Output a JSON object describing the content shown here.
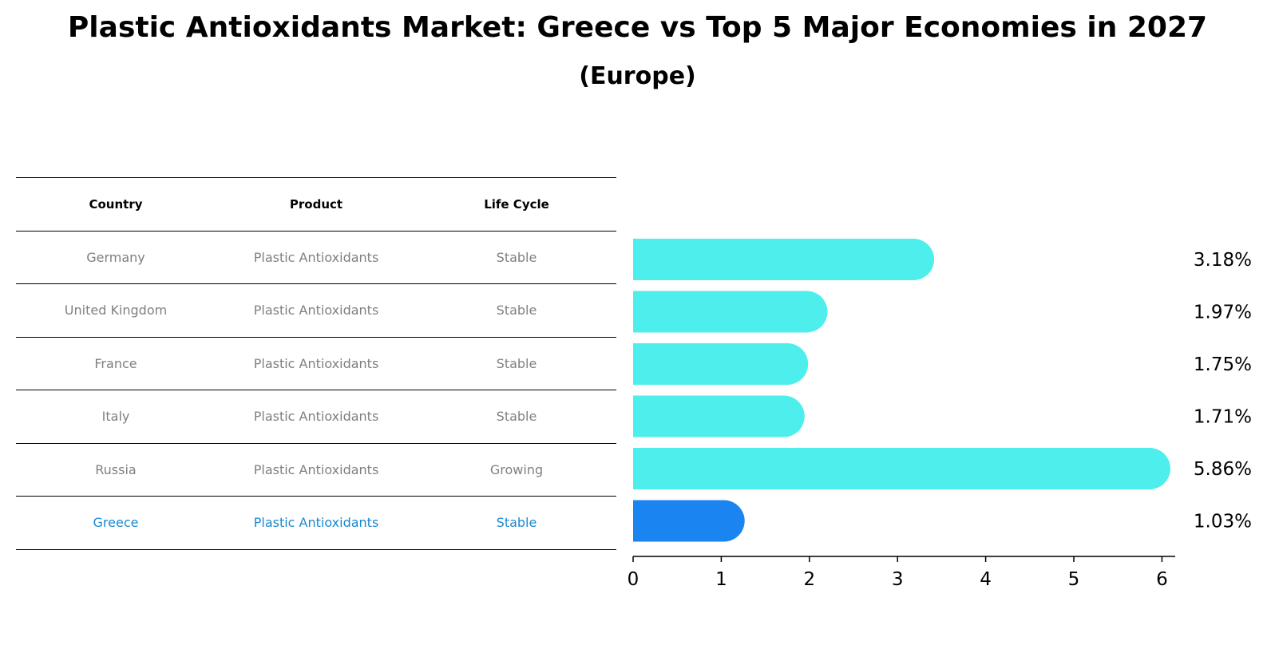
{
  "title": "Plastic Antioxidants Market: Greece vs Top 5 Major Economies in 2027",
  "subtitle": "(Europe)",
  "table": {
    "headers": [
      "Country",
      "Product",
      "Life Cycle"
    ],
    "rows": [
      {
        "country": "Germany",
        "product": "Plastic Antioxidants",
        "life_cycle": "Stable"
      },
      {
        "country": "United Kingdom",
        "product": "Plastic Antioxidants",
        "life_cycle": "Stable"
      },
      {
        "country": "France",
        "product": "Plastic Antioxidants",
        "life_cycle": "Stable"
      },
      {
        "country": "Italy",
        "product": "Plastic Antioxidants",
        "life_cycle": "Stable"
      },
      {
        "country": "Russia",
        "product": "Plastic Antioxidants",
        "life_cycle": "Growing"
      },
      {
        "country": "Greece",
        "product": "Plastic Antioxidants",
        "life_cycle": "Stable"
      }
    ]
  },
  "colors": {
    "bar": "#4eeeec",
    "highlight_bar": "#1a85f0",
    "highlight_text": "#1a8ad0"
  },
  "chart_data": {
    "type": "bar",
    "orientation": "horizontal",
    "categories": [
      "Germany",
      "United Kingdom",
      "France",
      "Italy",
      "Russia",
      "Greece"
    ],
    "values": [
      3.18,
      1.97,
      1.75,
      1.71,
      5.86,
      1.03
    ],
    "value_labels": [
      "3.18%",
      "1.97%",
      "1.75%",
      "1.71%",
      "5.86%",
      "1.03%"
    ],
    "highlight": "Greece",
    "xlim": [
      0,
      6
    ],
    "xticks": [
      0,
      1,
      2,
      3,
      4,
      5,
      6
    ],
    "grid": false
  }
}
